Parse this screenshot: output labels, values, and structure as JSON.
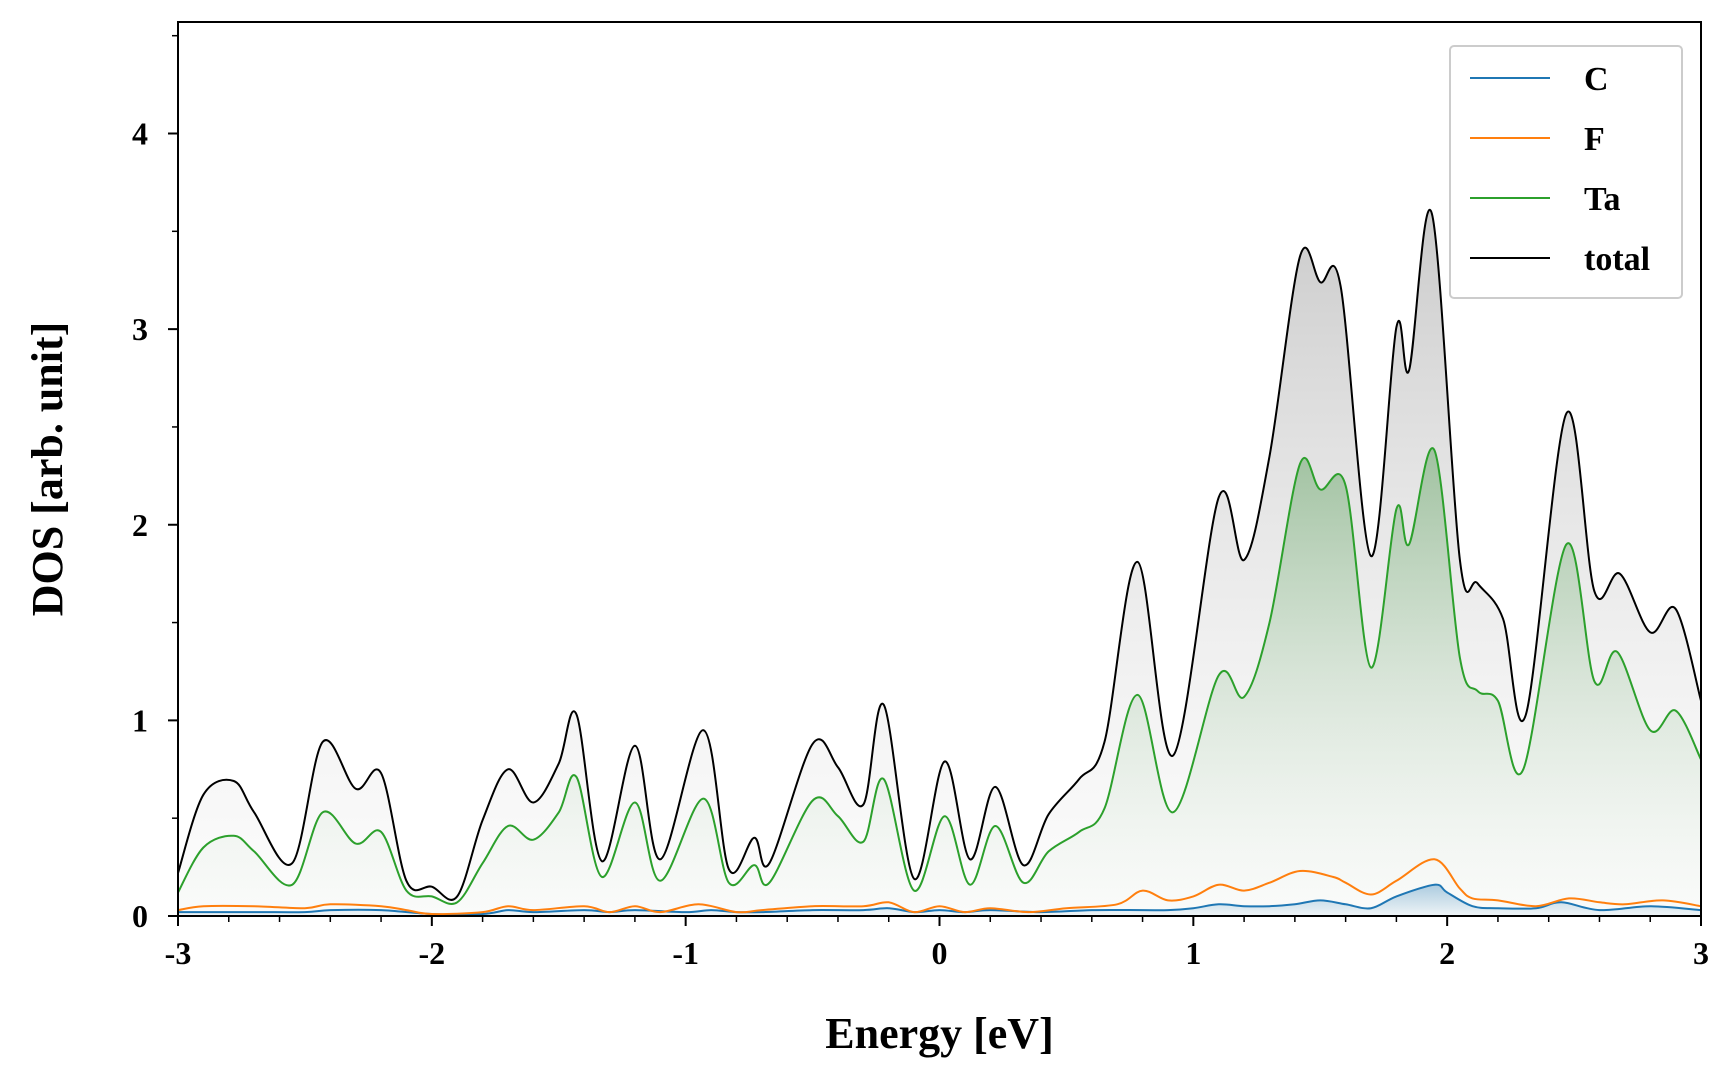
{
  "chart_data": {
    "type": "line",
    "title": "",
    "xlabel": "Energy [eV]",
    "ylabel": "DOS [arb. unit]",
    "xlim": [
      -3,
      3
    ],
    "ylim": [
      0,
      4.57
    ],
    "x_ticks": [
      -3,
      -2,
      -1,
      0,
      1,
      2,
      3
    ],
    "x_tick_labels": [
      "-3",
      "-2",
      "-1",
      "0",
      "1",
      "2",
      "3"
    ],
    "y_ticks": [
      0,
      1,
      2,
      3,
      4
    ],
    "y_tick_labels": [
      "0",
      "1",
      "2",
      "3",
      "4"
    ],
    "grid": false,
    "legend_position": "top-right",
    "fill_under": "total and Ta shaded with vertical gradient",
    "series": [
      {
        "name": "C",
        "color": "#1f77b4",
        "points": [
          [
            -3.0,
            0.02
          ],
          [
            -2.7,
            0.02
          ],
          [
            -2.5,
            0.02
          ],
          [
            -2.4,
            0.03
          ],
          [
            -2.2,
            0.03
          ],
          [
            -2.0,
            0.01
          ],
          [
            -1.8,
            0.01
          ],
          [
            -1.7,
            0.03
          ],
          [
            -1.6,
            0.02
          ],
          [
            -1.4,
            0.03
          ],
          [
            -1.3,
            0.02
          ],
          [
            -1.2,
            0.03
          ],
          [
            -1.0,
            0.02
          ],
          [
            -0.9,
            0.03
          ],
          [
            -0.8,
            0.02
          ],
          [
            -0.7,
            0.02
          ],
          [
            -0.5,
            0.03
          ],
          [
            -0.3,
            0.03
          ],
          [
            -0.2,
            0.04
          ],
          [
            -0.1,
            0.02
          ],
          [
            0.0,
            0.03
          ],
          [
            0.1,
            0.02
          ],
          [
            0.2,
            0.03
          ],
          [
            0.4,
            0.02
          ],
          [
            0.6,
            0.03
          ],
          [
            0.8,
            0.03
          ],
          [
            0.9,
            0.03
          ],
          [
            1.0,
            0.04
          ],
          [
            1.1,
            0.06
          ],
          [
            1.2,
            0.05
          ],
          [
            1.3,
            0.05
          ],
          [
            1.4,
            0.06
          ],
          [
            1.5,
            0.08
          ],
          [
            1.6,
            0.06
          ],
          [
            1.7,
            0.04
          ],
          [
            1.8,
            0.1
          ],
          [
            1.95,
            0.16
          ],
          [
            2.0,
            0.12
          ],
          [
            2.1,
            0.05
          ],
          [
            2.2,
            0.04
          ],
          [
            2.35,
            0.04
          ],
          [
            2.45,
            0.07
          ],
          [
            2.6,
            0.03
          ],
          [
            2.8,
            0.05
          ],
          [
            3.0,
            0.03
          ]
        ]
      },
      {
        "name": "F",
        "color": "#ff7f0e",
        "points": [
          [
            -3.0,
            0.03
          ],
          [
            -2.9,
            0.05
          ],
          [
            -2.7,
            0.05
          ],
          [
            -2.5,
            0.04
          ],
          [
            -2.4,
            0.06
          ],
          [
            -2.2,
            0.05
          ],
          [
            -2.1,
            0.03
          ],
          [
            -2.0,
            0.01
          ],
          [
            -1.8,
            0.02
          ],
          [
            -1.7,
            0.05
          ],
          [
            -1.6,
            0.03
          ],
          [
            -1.4,
            0.05
          ],
          [
            -1.3,
            0.02
          ],
          [
            -1.2,
            0.05
          ],
          [
            -1.1,
            0.02
          ],
          [
            -0.95,
            0.06
          ],
          [
            -0.8,
            0.02
          ],
          [
            -0.7,
            0.03
          ],
          [
            -0.5,
            0.05
          ],
          [
            -0.3,
            0.05
          ],
          [
            -0.2,
            0.07
          ],
          [
            -0.1,
            0.02
          ],
          [
            0.0,
            0.05
          ],
          [
            0.1,
            0.02
          ],
          [
            0.2,
            0.04
          ],
          [
            0.35,
            0.02
          ],
          [
            0.5,
            0.04
          ],
          [
            0.7,
            0.06
          ],
          [
            0.8,
            0.13
          ],
          [
            0.9,
            0.08
          ],
          [
            1.0,
            0.1
          ],
          [
            1.1,
            0.16
          ],
          [
            1.2,
            0.13
          ],
          [
            1.3,
            0.17
          ],
          [
            1.42,
            0.23
          ],
          [
            1.55,
            0.2
          ],
          [
            1.6,
            0.17
          ],
          [
            1.7,
            0.11
          ],
          [
            1.8,
            0.18
          ],
          [
            1.95,
            0.29
          ],
          [
            2.05,
            0.14
          ],
          [
            2.1,
            0.09
          ],
          [
            2.2,
            0.08
          ],
          [
            2.35,
            0.05
          ],
          [
            2.48,
            0.09
          ],
          [
            2.6,
            0.07
          ],
          [
            2.7,
            0.06
          ],
          [
            2.85,
            0.08
          ],
          [
            3.0,
            0.05
          ]
        ]
      },
      {
        "name": "Ta",
        "color": "#2ca02c",
        "points": [
          [
            -3.0,
            0.12
          ],
          [
            -2.9,
            0.35
          ],
          [
            -2.78,
            0.41
          ],
          [
            -2.7,
            0.33
          ],
          [
            -2.55,
            0.16
          ],
          [
            -2.43,
            0.53
          ],
          [
            -2.3,
            0.37
          ],
          [
            -2.2,
            0.43
          ],
          [
            -2.1,
            0.13
          ],
          [
            -2.0,
            0.1
          ],
          [
            -1.9,
            0.07
          ],
          [
            -1.8,
            0.27
          ],
          [
            -1.7,
            0.46
          ],
          [
            -1.6,
            0.39
          ],
          [
            -1.5,
            0.53
          ],
          [
            -1.43,
            0.71
          ],
          [
            -1.33,
            0.2
          ],
          [
            -1.2,
            0.58
          ],
          [
            -1.1,
            0.18
          ],
          [
            -0.93,
            0.6
          ],
          [
            -0.83,
            0.17
          ],
          [
            -0.73,
            0.26
          ],
          [
            -0.67,
            0.17
          ],
          [
            -0.5,
            0.59
          ],
          [
            -0.4,
            0.51
          ],
          [
            -0.3,
            0.38
          ],
          [
            -0.22,
            0.7
          ],
          [
            -0.1,
            0.13
          ],
          [
            0.02,
            0.51
          ],
          [
            0.12,
            0.16
          ],
          [
            0.22,
            0.46
          ],
          [
            0.33,
            0.17
          ],
          [
            0.43,
            0.33
          ],
          [
            0.55,
            0.43
          ],
          [
            0.65,
            0.55
          ],
          [
            0.78,
            1.13
          ],
          [
            0.92,
            0.53
          ],
          [
            1.1,
            1.23
          ],
          [
            1.2,
            1.12
          ],
          [
            1.3,
            1.5
          ],
          [
            1.42,
            2.31
          ],
          [
            1.5,
            2.18
          ],
          [
            1.6,
            2.2
          ],
          [
            1.7,
            1.27
          ],
          [
            1.8,
            2.08
          ],
          [
            1.85,
            1.9
          ],
          [
            1.95,
            2.38
          ],
          [
            2.05,
            1.32
          ],
          [
            2.12,
            1.15
          ],
          [
            2.2,
            1.1
          ],
          [
            2.3,
            0.75
          ],
          [
            2.47,
            1.9
          ],
          [
            2.58,
            1.2
          ],
          [
            2.67,
            1.35
          ],
          [
            2.8,
            0.95
          ],
          [
            2.9,
            1.05
          ],
          [
            3.0,
            0.8
          ]
        ]
      },
      {
        "name": "total",
        "color": "#000000",
        "points": [
          [
            -3.0,
            0.22
          ],
          [
            -2.9,
            0.62
          ],
          [
            -2.78,
            0.69
          ],
          [
            -2.7,
            0.53
          ],
          [
            -2.55,
            0.27
          ],
          [
            -2.43,
            0.89
          ],
          [
            -2.3,
            0.65
          ],
          [
            -2.2,
            0.73
          ],
          [
            -2.1,
            0.18
          ],
          [
            -2.0,
            0.15
          ],
          [
            -1.9,
            0.1
          ],
          [
            -1.8,
            0.49
          ],
          [
            -1.7,
            0.75
          ],
          [
            -1.6,
            0.58
          ],
          [
            -1.5,
            0.78
          ],
          [
            -1.43,
            1.03
          ],
          [
            -1.33,
            0.28
          ],
          [
            -1.2,
            0.87
          ],
          [
            -1.1,
            0.29
          ],
          [
            -0.93,
            0.95
          ],
          [
            -0.83,
            0.24
          ],
          [
            -0.73,
            0.4
          ],
          [
            -0.67,
            0.27
          ],
          [
            -0.5,
            0.88
          ],
          [
            -0.4,
            0.76
          ],
          [
            -0.3,
            0.57
          ],
          [
            -0.22,
            1.08
          ],
          [
            -0.1,
            0.19
          ],
          [
            0.02,
            0.79
          ],
          [
            0.12,
            0.29
          ],
          [
            0.22,
            0.66
          ],
          [
            0.33,
            0.26
          ],
          [
            0.43,
            0.52
          ],
          [
            0.55,
            0.7
          ],
          [
            0.65,
            0.89
          ],
          [
            0.78,
            1.81
          ],
          [
            0.92,
            0.82
          ],
          [
            1.1,
            2.14
          ],
          [
            1.2,
            1.82
          ],
          [
            1.3,
            2.35
          ],
          [
            1.42,
            3.37
          ],
          [
            1.5,
            3.24
          ],
          [
            1.58,
            3.22
          ],
          [
            1.7,
            1.84
          ],
          [
            1.8,
            3.01
          ],
          [
            1.85,
            2.79
          ],
          [
            1.94,
            3.59
          ],
          [
            2.05,
            1.82
          ],
          [
            2.12,
            1.7
          ],
          [
            2.22,
            1.52
          ],
          [
            2.31,
            1.03
          ],
          [
            2.47,
            2.57
          ],
          [
            2.58,
            1.66
          ],
          [
            2.68,
            1.75
          ],
          [
            2.8,
            1.45
          ],
          [
            2.9,
            1.57
          ],
          [
            3.0,
            1.1
          ]
        ]
      }
    ]
  }
}
